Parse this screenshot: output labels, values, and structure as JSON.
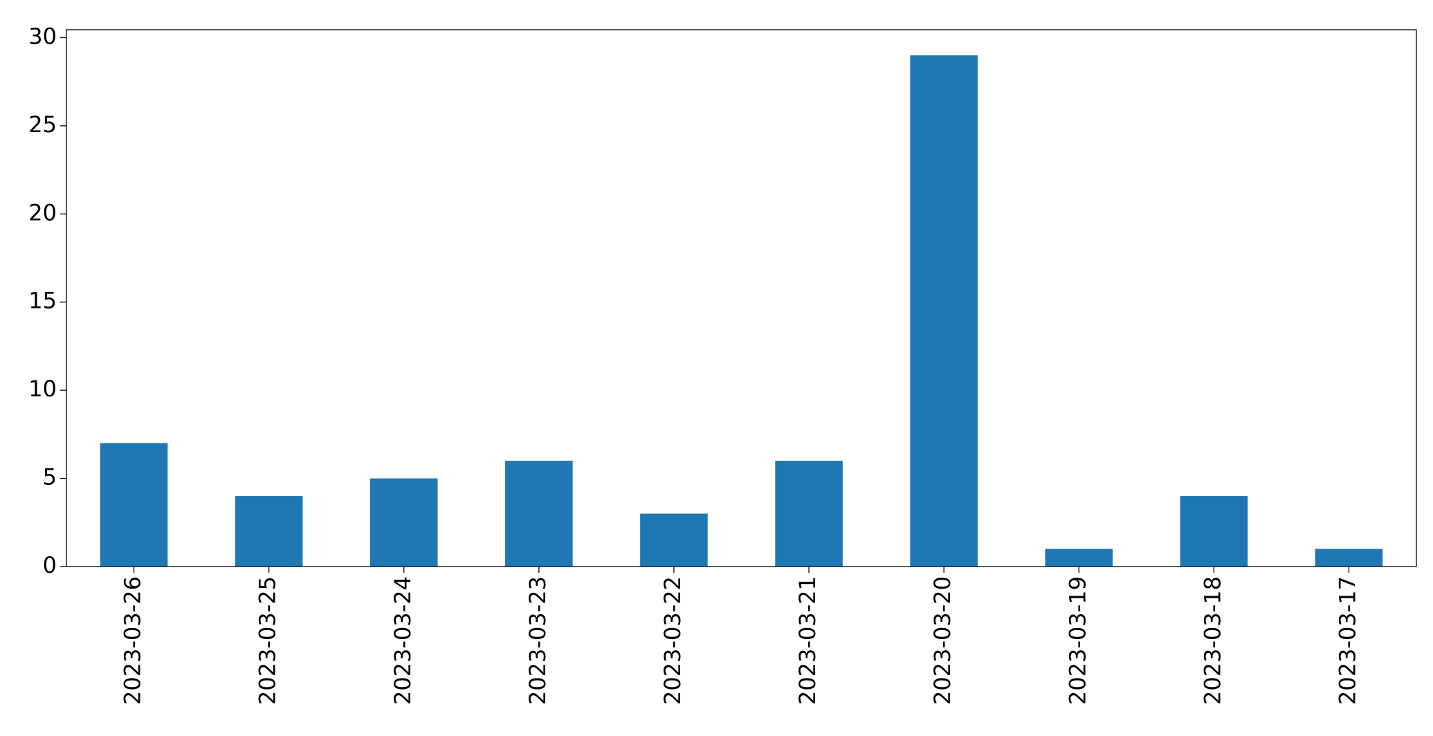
{
  "chart_data": {
    "type": "bar",
    "categories": [
      "2023-03-26",
      "2023-03-25",
      "2023-03-24",
      "2023-03-23",
      "2023-03-22",
      "2023-03-21",
      "2023-03-20",
      "2023-03-19",
      "2023-03-18",
      "2023-03-17"
    ],
    "values": [
      7,
      4,
      5,
      6,
      3,
      6,
      29,
      1,
      4,
      1
    ],
    "color": "#1f77b4",
    "ylim": [
      0,
      30.45
    ],
    "yticks": [
      0,
      5,
      10,
      15,
      20,
      25,
      30
    ],
    "grid": false
  }
}
